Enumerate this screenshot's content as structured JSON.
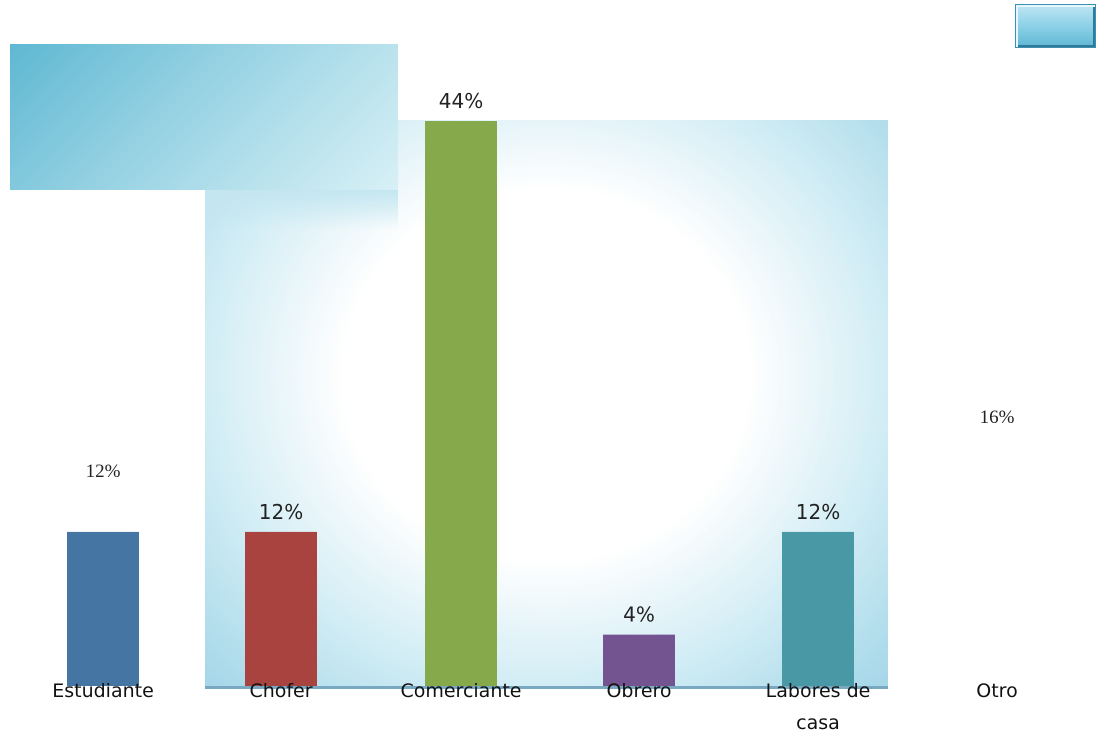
{
  "colors": {
    "bar_estudiante": "#4575A3",
    "bar_chofer": "#A9433F",
    "bar_comerciante": "#86A94B",
    "bar_obrero": "#735490",
    "bar_labores": "#4898A6"
  },
  "chart_data": {
    "type": "bar",
    "title": "",
    "xlabel": "",
    "ylabel": "",
    "ylim": [
      0,
      44
    ],
    "categories": [
      "Estudiante",
      "Chofer",
      "Comerciante",
      "Obrero",
      "Labores de casa",
      "Otro"
    ],
    "category_lines": [
      [
        "Estudiante"
      ],
      [
        "Chofer"
      ],
      [
        "Comerciante"
      ],
      [
        "Obrero"
      ],
      [
        "Labores de",
        "casa"
      ],
      [
        "Otro"
      ]
    ],
    "values": [
      12,
      12,
      44,
      4,
      12,
      16
    ],
    "data_labels": [
      "12%",
      "12%",
      "44%",
      "4%",
      "12%",
      "16%"
    ],
    "bar_visible": [
      true,
      true,
      true,
      true,
      true,
      false
    ],
    "label_style": [
      "serif",
      "sans",
      "sans",
      "sans",
      "sans",
      "serif"
    ],
    "colors": [
      "#4575A3",
      "#A9433F",
      "#86A94B",
      "#735490",
      "#4898A6",
      ""
    ]
  }
}
